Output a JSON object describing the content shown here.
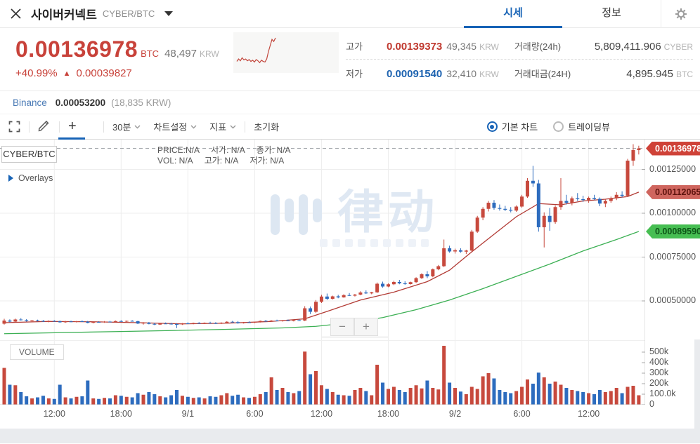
{
  "header": {
    "title": "사이버커넥트",
    "pair": "CYBER/BTC",
    "tabs": [
      {
        "label": "시세"
      },
      {
        "label": "정보"
      }
    ]
  },
  "summary": {
    "price": "0.00136978",
    "price_unit": "BTC",
    "krw": "48,497",
    "krw_unit": "KRW",
    "change_pct": "+40.99%",
    "change_arrow": "▲",
    "change_abs": "0.00039827",
    "sparkline": [
      22,
      30,
      24,
      34,
      27,
      30,
      24,
      28,
      22,
      26,
      20,
      28,
      24,
      18,
      26,
      22,
      20,
      30,
      55,
      75,
      95,
      88,
      100
    ],
    "sparkline_color": "#c2463c",
    "stats": [
      {
        "label": "고가",
        "value": "0.00139373",
        "sub": "49,345",
        "unit": "KRW"
      },
      {
        "label": "거래량(24h)",
        "value": "5,809,411.906",
        "unit": "CYBER"
      },
      {
        "label": "저가",
        "value": "0.00091540",
        "sub": "32,410",
        "unit": "KRW"
      },
      {
        "label": "거래대금(24H)",
        "value": "4,895.945",
        "unit": "BTC"
      }
    ]
  },
  "binance": {
    "label": "Binance",
    "value": "0.00053200",
    "krw": "(18,835 KRW)"
  },
  "toolbar": {
    "plus": "+",
    "interval": "30분",
    "chart_settings": "차트설정",
    "indicators": "지표",
    "reset": "초기화",
    "radios": [
      {
        "label": "기본 차트",
        "selected": true
      },
      {
        "label": "트레이딩뷰",
        "selected": false
      }
    ]
  },
  "chart": {
    "symbol_label": "CYBER/BTC",
    "price_label": "PRICE:N/A",
    "open_label": "시가: N/A",
    "close_label": "종가: N/A",
    "vol_label": "VOL:  N/A",
    "high_label": "고가: N/A",
    "low_label": "저가: N/A",
    "overlays_label": "Overlays",
    "volume_label": "VOLUME",
    "watermark": "律动",
    "zoom_out": "−",
    "zoom_in": "+"
  },
  "chart_data": {
    "type": "candlestick+volume",
    "pair": "CYBER/BTC",
    "interval": "30m",
    "price_unit_scale": "1e-8 BTC (integer prices below)",
    "ylim_price": [
      0.0003,
      0.00142
    ],
    "ylim_volume": [
      0,
      606000
    ],
    "grid": true,
    "last_price": 136978,
    "price_ticks": [
      {
        "price": 125000,
        "text": "0.00125000"
      },
      {
        "price": 100000,
        "text": "0.00100000"
      },
      {
        "price": 75000,
        "text": "0.00075000"
      },
      {
        "price": 50000,
        "text": "0.00050000"
      }
    ],
    "volume_ticks": [
      {
        "v": 500,
        "text": "500k"
      },
      {
        "v": 400,
        "text": "400k"
      },
      {
        "v": 300,
        "text": "300k"
      },
      {
        "v": 200,
        "text": "200k"
      },
      {
        "v": 100,
        "text": "100.0k"
      },
      {
        "v": 0,
        "text": "0"
      }
    ],
    "time_ticks": [
      {
        "i": 9,
        "label": "12:00"
      },
      {
        "i": 21,
        "label": "18:00"
      },
      {
        "i": 33,
        "label": "9/1"
      },
      {
        "i": 45,
        "label": "6:00"
      },
      {
        "i": 57,
        "label": "12:00"
      },
      {
        "i": 69,
        "label": "18:00"
      },
      {
        "i": 81,
        "label": "9/2"
      },
      {
        "i": 93,
        "label": "6:00"
      },
      {
        "i": 105,
        "label": "12:00"
      }
    ],
    "price_badges": [
      {
        "text": "0.00136978",
        "price": 136978,
        "style": "last"
      },
      {
        "text": "0.00112065",
        "price": 112065,
        "style": "ma_red"
      },
      {
        "text": "0.00089590",
        "price": 89590,
        "style": "ma_green"
      }
    ],
    "colors": {
      "up": "#c7493d",
      "down": "#2d6cbe",
      "ma_red": "#b23b35",
      "ma_green": "#3cb054"
    },
    "ma_red": [
      [
        0,
        37600
      ],
      [
        8,
        38300
      ],
      [
        16,
        38100
      ],
      [
        24,
        37600
      ],
      [
        32,
        36900
      ],
      [
        40,
        37300
      ],
      [
        48,
        38300
      ],
      [
        54,
        39800
      ],
      [
        58,
        44000
      ],
      [
        64,
        50500
      ],
      [
        70,
        55000
      ],
      [
        76,
        61000
      ],
      [
        80,
        67500
      ],
      [
        84,
        78000
      ],
      [
        88,
        88000
      ],
      [
        92,
        98000
      ],
      [
        96,
        105500
      ],
      [
        100,
        104800
      ],
      [
        104,
        107000
      ],
      [
        108,
        108000
      ],
      [
        110,
        108800
      ],
      [
        112,
        109500
      ],
      [
        114,
        112065
      ]
    ],
    "ma_green": [
      [
        0,
        31300
      ],
      [
        10,
        31900
      ],
      [
        20,
        32500
      ],
      [
        30,
        33100
      ],
      [
        40,
        33800
      ],
      [
        50,
        34600
      ],
      [
        56,
        35500
      ],
      [
        62,
        37500
      ],
      [
        68,
        40500
      ],
      [
        74,
        45000
      ],
      [
        80,
        50500
      ],
      [
        86,
        57000
      ],
      [
        92,
        64000
      ],
      [
        98,
        71000
      ],
      [
        104,
        78500
      ],
      [
        110,
        85000
      ],
      [
        114,
        89590
      ]
    ],
    "candles": [
      [
        37000,
        39800,
        36500,
        38800,
        350
      ],
      [
        38800,
        39500,
        37800,
        38200,
        190
      ],
      [
        38200,
        39900,
        38000,
        39400,
        185
      ],
      [
        39400,
        40200,
        38800,
        39000,
        120
      ],
      [
        39000,
        39600,
        38200,
        38500,
        80
      ],
      [
        38500,
        39200,
        38000,
        38900,
        60
      ],
      [
        38900,
        39300,
        38300,
        38600,
        70
      ],
      [
        38600,
        39100,
        38000,
        38300,
        85
      ],
      [
        38300,
        38900,
        37800,
        38600,
        60
      ],
      [
        38600,
        39000,
        38100,
        38400,
        55
      ],
      [
        38400,
        38800,
        37500,
        37800,
        190
      ],
      [
        37800,
        38600,
        37500,
        38300,
        70
      ],
      [
        38300,
        38700,
        37900,
        38100,
        60
      ],
      [
        38100,
        38600,
        37700,
        38400,
        75
      ],
      [
        38400,
        38900,
        38000,
        38200,
        80
      ],
      [
        38200,
        38600,
        37200,
        37500,
        230
      ],
      [
        37500,
        38300,
        37200,
        38000,
        60
      ],
      [
        38000,
        38400,
        37600,
        37800,
        55
      ],
      [
        37800,
        38500,
        37500,
        38200,
        65
      ],
      [
        38200,
        38600,
        37800,
        38000,
        60
      ],
      [
        38000,
        38800,
        37800,
        38500,
        90
      ],
      [
        38500,
        39000,
        38100,
        38300,
        85
      ],
      [
        38300,
        38800,
        37900,
        38600,
        75
      ],
      [
        38600,
        39000,
        38200,
        38400,
        70
      ],
      [
        38400,
        38700,
        36800,
        37100,
        110
      ],
      [
        37100,
        37900,
        36500,
        37600,
        95
      ],
      [
        37600,
        38000,
        36600,
        36900,
        120
      ],
      [
        36900,
        37600,
        36200,
        36500,
        100
      ],
      [
        36500,
        37400,
        36300,
        37100,
        80
      ],
      [
        37100,
        37700,
        36800,
        37000,
        70
      ],
      [
        37000,
        37500,
        36500,
        36800,
        90
      ],
      [
        36800,
        37300,
        34500,
        36600,
        140
      ],
      [
        36600,
        37400,
        36300,
        37200,
        85
      ],
      [
        37200,
        37800,
        36900,
        37000,
        75
      ],
      [
        37000,
        37600,
        36700,
        37400,
        65
      ],
      [
        37400,
        37900,
        37000,
        37100,
        70
      ],
      [
        37100,
        37700,
        36800,
        37500,
        60
      ],
      [
        37500,
        38100,
        37200,
        37300,
        80
      ],
      [
        37300,
        37900,
        36900,
        37000,
        75
      ],
      [
        37000,
        37800,
        36800,
        37600,
        90
      ],
      [
        37600,
        38400,
        37300,
        38100,
        110
      ],
      [
        38100,
        38600,
        37700,
        37900,
        85
      ],
      [
        37900,
        38500,
        37000,
        37300,
        95
      ],
      [
        37300,
        38000,
        37100,
        37800,
        70
      ],
      [
        37800,
        38300,
        37400,
        37600,
        65
      ],
      [
        37600,
        38200,
        37300,
        38000,
        75
      ],
      [
        38000,
        38800,
        37700,
        38600,
        100
      ],
      [
        38600,
        39200,
        38300,
        38500,
        120
      ],
      [
        38500,
        39000,
        38100,
        38800,
        260
      ],
      [
        38800,
        39300,
        38400,
        38600,
        140
      ],
      [
        38600,
        39100,
        38200,
        38900,
        160
      ],
      [
        38900,
        39400,
        38500,
        38700,
        120
      ],
      [
        38700,
        39200,
        38300,
        39000,
        110
      ],
      [
        39000,
        39500,
        38600,
        38800,
        130
      ],
      [
        38800,
        47000,
        38500,
        45800,
        505
      ],
      [
        45800,
        46800,
        42500,
        43800,
        290
      ],
      [
        43800,
        50500,
        43200,
        49500,
        320
      ],
      [
        49500,
        53500,
        48800,
        52500,
        185
      ],
      [
        52500,
        54200,
        50500,
        51200,
        150
      ],
      [
        51200,
        53000,
        50800,
        52600,
        120
      ],
      [
        52600,
        53500,
        51500,
        52000,
        95
      ],
      [
        52000,
        53800,
        51800,
        53300,
        90
      ],
      [
        53300,
        54500,
        52800,
        53000,
        85
      ],
      [
        53000,
        54000,
        52500,
        53600,
        140
      ],
      [
        53600,
        55500,
        53200,
        54800,
        160
      ],
      [
        54800,
        56000,
        54000,
        54300,
        130
      ],
      [
        54300,
        55200,
        53800,
        54900,
        90
      ],
      [
        54900,
        60500,
        54500,
        59800,
        380
      ],
      [
        59800,
        61000,
        57500,
        58200,
        210
      ],
      [
        58200,
        60000,
        57800,
        59500,
        150
      ],
      [
        59500,
        61500,
        59000,
        60800,
        170
      ],
      [
        60800,
        62000,
        59500,
        60000,
        140
      ],
      [
        60000,
        61200,
        59200,
        59600,
        120
      ],
      [
        59600,
        61000,
        59300,
        60700,
        160
      ],
      [
        60700,
        63500,
        60200,
        63000,
        185
      ],
      [
        63000,
        65800,
        62500,
        65200,
        155
      ],
      [
        65200,
        67000,
        63000,
        64000,
        230
      ],
      [
        64000,
        68500,
        63500,
        68000,
        160
      ],
      [
        68000,
        70500,
        67500,
        69800,
        145
      ],
      [
        69800,
        85000,
        69300,
        80000,
        560
      ],
      [
        80000,
        81500,
        77500,
        78200,
        210
      ],
      [
        78200,
        79800,
        77000,
        78900,
        160
      ],
      [
        78900,
        80000,
        77500,
        78100,
        125
      ],
      [
        78100,
        79200,
        76800,
        78700,
        100
      ],
      [
        78700,
        90500,
        78200,
        89500,
        170
      ],
      [
        89500,
        98500,
        88800,
        97500,
        150
      ],
      [
        97500,
        103500,
        96000,
        102500,
        270
      ],
      [
        102500,
        107000,
        101000,
        106000,
        300
      ],
      [
        106000,
        107500,
        102000,
        103000,
        250
      ],
      [
        103000,
        105000,
        101500,
        102500,
        140
      ],
      [
        102500,
        104200,
        101200,
        102000,
        120
      ],
      [
        102000,
        103500,
        100500,
        101500,
        110
      ],
      [
        101500,
        104500,
        100800,
        103800,
        130
      ],
      [
        103800,
        110500,
        103200,
        109500,
        170
      ],
      [
        109500,
        120000,
        108800,
        118500,
        240
      ],
      [
        118500,
        127000,
        115000,
        117000,
        200
      ],
      [
        117000,
        119000,
        89500,
        92000,
        305
      ],
      [
        92000,
        100500,
        80500,
        98500,
        260
      ],
      [
        98500,
        103000,
        90000,
        95000,
        200
      ],
      [
        95000,
        104500,
        94000,
        103500,
        220
      ],
      [
        103500,
        120000,
        102000,
        107000,
        190
      ],
      [
        107000,
        110500,
        105000,
        106000,
        160
      ],
      [
        106000,
        109500,
        104500,
        108500,
        140
      ],
      [
        108500,
        111500,
        107000,
        108000,
        130
      ],
      [
        108000,
        110000,
        106500,
        107500,
        120
      ],
      [
        107500,
        109500,
        106000,
        108800,
        110
      ],
      [
        108800,
        110500,
        107500,
        108200,
        100
      ],
      [
        108200,
        109000,
        104000,
        105500,
        140
      ],
      [
        105500,
        108000,
        103500,
        107000,
        120
      ],
      [
        107000,
        109500,
        106000,
        108500,
        130
      ],
      [
        108500,
        112000,
        107500,
        110500,
        160
      ],
      [
        110500,
        112500,
        109000,
        110000,
        110
      ],
      [
        110000,
        131000,
        109500,
        130000,
        170
      ],
      [
        130000,
        139373,
        127000,
        136000,
        180
      ],
      [
        136000,
        138500,
        133500,
        136978,
        90
      ]
    ]
  }
}
